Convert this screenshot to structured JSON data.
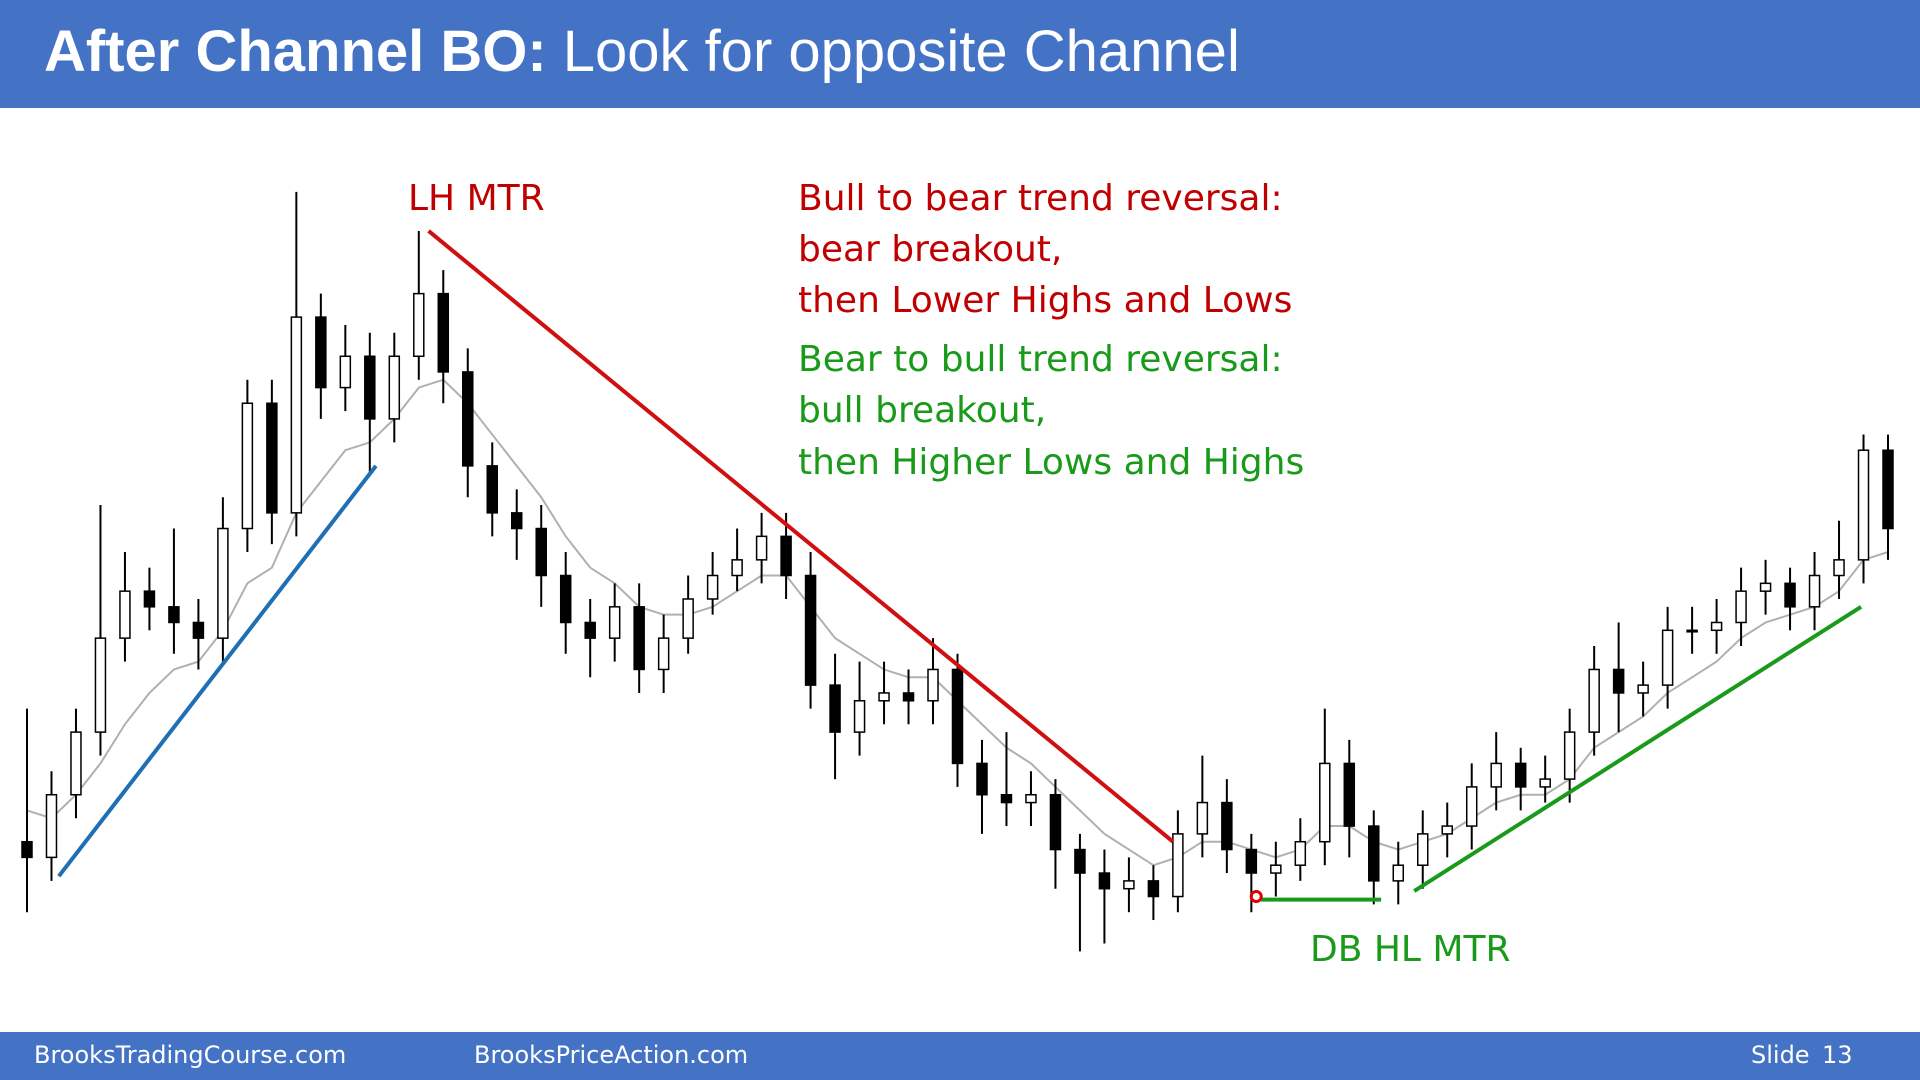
{
  "header": {
    "title_bold": "After Channel BO:",
    "title_rest": "Look for opposite Channel"
  },
  "footer": {
    "left": "BrooksTradingCourse.com",
    "center": "BrooksPriceAction.com",
    "slide_label": "Slide",
    "slide_number": 13
  },
  "annotations": {
    "lh_mtr": "LH MTR",
    "db_hl_mtr": "DB HL MTR",
    "bear_reversal": [
      "Bull to bear trend reversal:",
      "bear breakout,",
      "then Lower Highs and Lows"
    ],
    "bull_reversal": [
      "Bear to bull trend reversal:",
      "bull breakout,",
      "then Higher Lows and Highs"
    ]
  },
  "chart_data": {
    "type": "candlestick",
    "xlim": [
      0,
      76
    ],
    "ylim": [
      0,
      100
    ],
    "up_color": "#ffffff",
    "down_color": "#000000",
    "wick_color": "#000000",
    "open": [
      16,
      14,
      22,
      30,
      42,
      48,
      46,
      44,
      42,
      56,
      72,
      58,
      83,
      74,
      78,
      70,
      78,
      86,
      76,
      64,
      58,
      56,
      50,
      44,
      42,
      46,
      38,
      42,
      47,
      50,
      52,
      55,
      50,
      36,
      30,
      34,
      35,
      34,
      38,
      26,
      22,
      21,
      22,
      15,
      12,
      10,
      11,
      9,
      17,
      21,
      15,
      12,
      13,
      16,
      26,
      18,
      11,
      13,
      17,
      18,
      23,
      26,
      23,
      24,
      30,
      38,
      35,
      36,
      43,
      43,
      44,
      48,
      49,
      46,
      50,
      52,
      66
    ],
    "high": [
      33,
      25,
      33,
      59,
      53,
      51,
      56,
      47,
      60,
      75,
      75,
      99,
      86,
      82,
      81,
      81,
      94,
      89,
      79,
      67,
      61,
      59,
      53,
      47,
      49,
      49,
      45,
      50,
      53,
      56,
      58,
      58,
      53,
      40,
      39,
      39,
      38,
      42,
      40,
      29,
      30,
      25,
      24,
      17,
      15,
      14,
      13,
      20,
      27,
      24,
      17,
      16,
      19,
      33,
      29,
      20,
      16,
      20,
      21,
      26,
      30,
      28,
      27,
      33,
      41,
      44,
      39,
      46,
      46,
      47,
      51,
      52,
      51,
      53,
      57,
      68,
      68
    ],
    "low": [
      7,
      11,
      19,
      27,
      39,
      43,
      40,
      38,
      39,
      53,
      54,
      55,
      70,
      71,
      63,
      67,
      75,
      72,
      60,
      55,
      52,
      46,
      40,
      37,
      39,
      35,
      35,
      40,
      45,
      48,
      49,
      47,
      33,
      24,
      27,
      31,
      31,
      31,
      23,
      17,
      18,
      18,
      10,
      2,
      3,
      7,
      6,
      7,
      14,
      12,
      7,
      9,
      11,
      13,
      14,
      8,
      8,
      10,
      14,
      15,
      20,
      20,
      21,
      21,
      27,
      30,
      32,
      33,
      40,
      40,
      41,
      45,
      43,
      43,
      47,
      49,
      52
    ],
    "close": [
      14,
      22,
      30,
      42,
      48,
      46,
      44,
      42,
      56,
      72,
      58,
      83,
      74,
      78,
      70,
      78,
      86,
      76,
      64,
      58,
      56,
      50,
      44,
      42,
      46,
      38,
      42,
      47,
      50,
      52,
      55,
      50,
      36,
      30,
      34,
      35,
      34,
      38,
      26,
      22,
      21,
      22,
      15,
      12,
      10,
      11,
      9,
      17,
      21,
      15,
      12,
      13,
      16,
      26,
      18,
      11,
      13,
      17,
      18,
      23,
      26,
      23,
      24,
      30,
      38,
      35,
      36,
      43,
      43,
      44,
      48,
      49,
      46,
      50,
      52,
      66,
      56
    ],
    "moving_average": {
      "color": "#b0b0b0",
      "values": [
        20,
        19,
        22,
        26,
        31,
        35,
        38,
        39,
        43,
        49,
        51,
        58,
        62,
        66,
        67,
        70,
        74,
        75,
        72,
        68,
        64,
        60,
        55,
        51,
        49,
        46,
        45,
        45,
        46,
        48,
        50,
        50,
        46,
        42,
        40,
        38,
        37,
        37,
        34,
        31,
        28,
        26,
        23,
        20,
        17,
        15,
        13,
        14,
        16,
        16,
        15,
        14,
        15,
        18,
        18,
        16,
        15,
        16,
        17,
        19,
        21,
        22,
        22,
        24,
        28,
        30,
        32,
        35,
        37,
        39,
        42,
        44,
        45,
        46,
        48,
        52,
        53
      ]
    },
    "trend_lines": [
      {
        "color": "#1f6fb5",
        "x": [
          1.3,
          14.25
        ],
        "values": [
          11.6,
          64
        ]
      },
      {
        "color": "#d01010",
        "x": [
          16.4,
          46.8
        ],
        "values": [
          94,
          16
        ]
      },
      {
        "color": "#1a9a1a",
        "x": [
          50.4,
          55.3
        ],
        "values": [
          8.6,
          8.6
        ]
      },
      {
        "color": "#1a9a1a",
        "x": [
          56.65,
          74.9
        ],
        "values": [
          9.7,
          46
        ]
      }
    ],
    "markers": [
      {
        "color": "#e00000",
        "x": 50.2,
        "value": 9
      }
    ]
  }
}
